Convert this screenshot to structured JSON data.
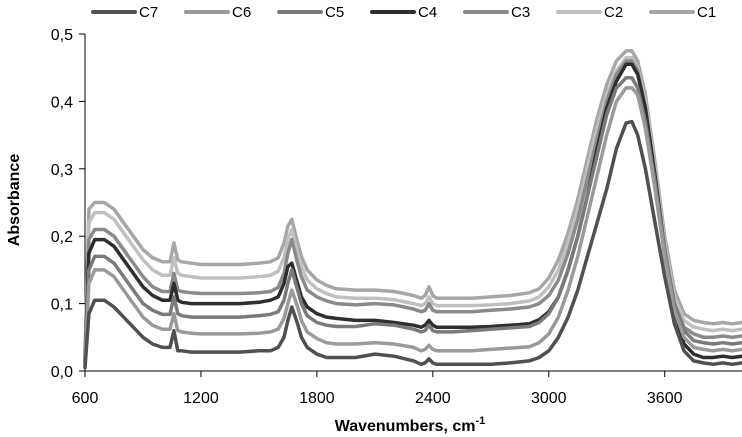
{
  "chart_data": {
    "type": "line",
    "title": "",
    "xlabel": "Wavenumbers, cm",
    "xlabel_sup": "-1",
    "ylabel": "Absorbance",
    "xlim": [
      600,
      4000
    ],
    "ylim": [
      0,
      0.5
    ],
    "x_ticks": [
      600,
      1200,
      1800,
      2400,
      3000,
      3600
    ],
    "x_tick_labels": [
      "600",
      "1200",
      "1800",
      "2400",
      "3000",
      "3600"
    ],
    "y_ticks": [
      0,
      0.1,
      0.2,
      0.3,
      0.4,
      0.5
    ],
    "y_tick_labels": [
      "0,0",
      "0,1",
      "0,2",
      "0,3",
      "0,4",
      "0,5"
    ],
    "grid": false,
    "legend_position": "top",
    "x": [
      600,
      620,
      650,
      700,
      750,
      800,
      850,
      900,
      950,
      1000,
      1040,
      1060,
      1080,
      1100,
      1150,
      1200,
      1300,
      1400,
      1500,
      1560,
      1600,
      1630,
      1650,
      1670,
      1700,
      1720,
      1750,
      1800,
      1850,
      1900,
      2000,
      2100,
      2200,
      2300,
      2340,
      2360,
      2380,
      2400,
      2420,
      2500,
      2600,
      2700,
      2800,
      2900,
      2950,
      3000,
      3050,
      3100,
      3150,
      3200,
      3250,
      3300,
      3350,
      3400,
      3430,
      3460,
      3500,
      3550,
      3600,
      3650,
      3700,
      3750,
      3800,
      3850,
      3900,
      3950,
      4000
    ],
    "series": [
      {
        "name": "C7",
        "color": "#505050",
        "values": [
          0.005,
          0.085,
          0.105,
          0.105,
          0.095,
          0.08,
          0.065,
          0.05,
          0.04,
          0.035,
          0.035,
          0.06,
          0.03,
          0.03,
          0.028,
          0.028,
          0.028,
          0.028,
          0.03,
          0.03,
          0.035,
          0.05,
          0.075,
          0.095,
          0.07,
          0.05,
          0.035,
          0.025,
          0.02,
          0.02,
          0.02,
          0.025,
          0.022,
          0.015,
          0.01,
          0.012,
          0.018,
          0.012,
          0.01,
          0.01,
          0.01,
          0.01,
          0.012,
          0.015,
          0.02,
          0.03,
          0.05,
          0.08,
          0.12,
          0.17,
          0.22,
          0.27,
          0.33,
          0.368,
          0.37,
          0.35,
          0.3,
          0.22,
          0.14,
          0.07,
          0.03,
          0.015,
          0.012,
          0.01,
          0.012,
          0.01,
          0.012
        ]
      },
      {
        "name": "C6",
        "color": "#9a9a9a",
        "values": [
          0.01,
          0.13,
          0.15,
          0.15,
          0.14,
          0.12,
          0.1,
          0.08,
          0.068,
          0.062,
          0.062,
          0.085,
          0.06,
          0.058,
          0.056,
          0.055,
          0.055,
          0.055,
          0.056,
          0.058,
          0.062,
          0.078,
          0.1,
          0.12,
          0.095,
          0.075,
          0.058,
          0.048,
          0.042,
          0.04,
          0.04,
          0.042,
          0.04,
          0.035,
          0.03,
          0.032,
          0.038,
          0.032,
          0.03,
          0.03,
          0.03,
          0.032,
          0.034,
          0.036,
          0.042,
          0.055,
          0.08,
          0.12,
          0.17,
          0.23,
          0.29,
          0.35,
          0.4,
          0.42,
          0.42,
          0.41,
          0.36,
          0.27,
          0.17,
          0.09,
          0.05,
          0.035,
          0.032,
          0.03,
          0.032,
          0.03,
          0.032
        ]
      },
      {
        "name": "C5",
        "color": "#7a7a7a",
        "values": [
          0.012,
          0.15,
          0.17,
          0.17,
          0.16,
          0.14,
          0.12,
          0.1,
          0.09,
          0.084,
          0.084,
          0.11,
          0.085,
          0.082,
          0.08,
          0.08,
          0.08,
          0.08,
          0.082,
          0.084,
          0.088,
          0.105,
          0.13,
          0.15,
          0.12,
          0.1,
          0.082,
          0.072,
          0.068,
          0.066,
          0.066,
          0.07,
          0.068,
          0.062,
          0.058,
          0.06,
          0.068,
          0.06,
          0.058,
          0.058,
          0.06,
          0.062,
          0.064,
          0.066,
          0.072,
          0.085,
          0.11,
          0.15,
          0.2,
          0.26,
          0.32,
          0.38,
          0.42,
          0.435,
          0.435,
          0.42,
          0.37,
          0.28,
          0.18,
          0.1,
          0.06,
          0.045,
          0.042,
          0.04,
          0.042,
          0.04,
          0.042
        ]
      },
      {
        "name": "C4",
        "color": "#2e2e2e",
        "values": [
          0.015,
          0.175,
          0.195,
          0.195,
          0.185,
          0.165,
          0.145,
          0.125,
          0.112,
          0.105,
          0.105,
          0.13,
          0.105,
          0.102,
          0.1,
          0.1,
          0.1,
          0.1,
          0.102,
          0.105,
          0.11,
          0.13,
          0.155,
          0.16,
          0.13,
          0.11,
          0.095,
          0.085,
          0.08,
          0.078,
          0.075,
          0.075,
          0.072,
          0.068,
          0.065,
          0.068,
          0.075,
          0.068,
          0.065,
          0.065,
          0.065,
          0.066,
          0.068,
          0.07,
          0.076,
          0.088,
          0.11,
          0.15,
          0.2,
          0.26,
          0.33,
          0.39,
          0.43,
          0.455,
          0.455,
          0.44,
          0.39,
          0.29,
          0.18,
          0.09,
          0.04,
          0.025,
          0.02,
          0.02,
          0.022,
          0.02,
          0.022
        ]
      },
      {
        "name": "C3",
        "color": "#8a8a8a",
        "values": [
          0.015,
          0.195,
          0.21,
          0.21,
          0.2,
          0.18,
          0.16,
          0.14,
          0.125,
          0.118,
          0.118,
          0.145,
          0.12,
          0.118,
          0.116,
          0.115,
          0.115,
          0.115,
          0.116,
          0.118,
          0.124,
          0.145,
          0.175,
          0.195,
          0.16,
          0.14,
          0.12,
          0.11,
          0.104,
          0.1,
          0.098,
          0.1,
          0.098,
          0.092,
          0.088,
          0.09,
          0.1,
          0.09,
          0.088,
          0.088,
          0.088,
          0.09,
          0.092,
          0.095,
          0.1,
          0.112,
          0.135,
          0.175,
          0.225,
          0.285,
          0.345,
          0.4,
          0.44,
          0.46,
          0.46,
          0.445,
          0.39,
          0.29,
          0.18,
          0.1,
          0.065,
          0.055,
          0.05,
          0.05,
          0.052,
          0.05,
          0.052
        ]
      },
      {
        "name": "C2",
        "color": "#c0c0c0",
        "values": [
          0.02,
          0.22,
          0.235,
          0.235,
          0.225,
          0.205,
          0.185,
          0.165,
          0.15,
          0.142,
          0.142,
          0.168,
          0.145,
          0.142,
          0.14,
          0.138,
          0.138,
          0.138,
          0.14,
          0.142,
          0.148,
          0.168,
          0.195,
          0.21,
          0.175,
          0.155,
          0.135,
          0.122,
          0.115,
          0.11,
          0.108,
          0.108,
          0.106,
          0.1,
          0.097,
          0.1,
          0.11,
          0.1,
          0.097,
          0.097,
          0.097,
          0.098,
          0.1,
          0.104,
          0.11,
          0.125,
          0.15,
          0.19,
          0.24,
          0.3,
          0.36,
          0.41,
          0.445,
          0.465,
          0.465,
          0.45,
          0.4,
          0.3,
          0.19,
          0.11,
          0.075,
          0.065,
          0.062,
          0.06,
          0.062,
          0.06,
          0.062
        ]
      },
      {
        "name": "C1",
        "color": "#a6a6a6",
        "values": [
          0.02,
          0.24,
          0.25,
          0.25,
          0.24,
          0.22,
          0.2,
          0.18,
          0.168,
          0.162,
          0.162,
          0.19,
          0.165,
          0.162,
          0.16,
          0.158,
          0.158,
          0.158,
          0.16,
          0.162,
          0.168,
          0.19,
          0.215,
          0.225,
          0.19,
          0.17,
          0.15,
          0.135,
          0.127,
          0.122,
          0.12,
          0.12,
          0.118,
          0.112,
          0.108,
          0.112,
          0.125,
          0.112,
          0.108,
          0.108,
          0.108,
          0.11,
          0.112,
          0.116,
          0.122,
          0.138,
          0.165,
          0.205,
          0.255,
          0.315,
          0.375,
          0.425,
          0.46,
          0.475,
          0.475,
          0.46,
          0.41,
          0.31,
          0.2,
          0.12,
          0.085,
          0.075,
          0.072,
          0.07,
          0.072,
          0.07,
          0.072
        ]
      }
    ]
  }
}
